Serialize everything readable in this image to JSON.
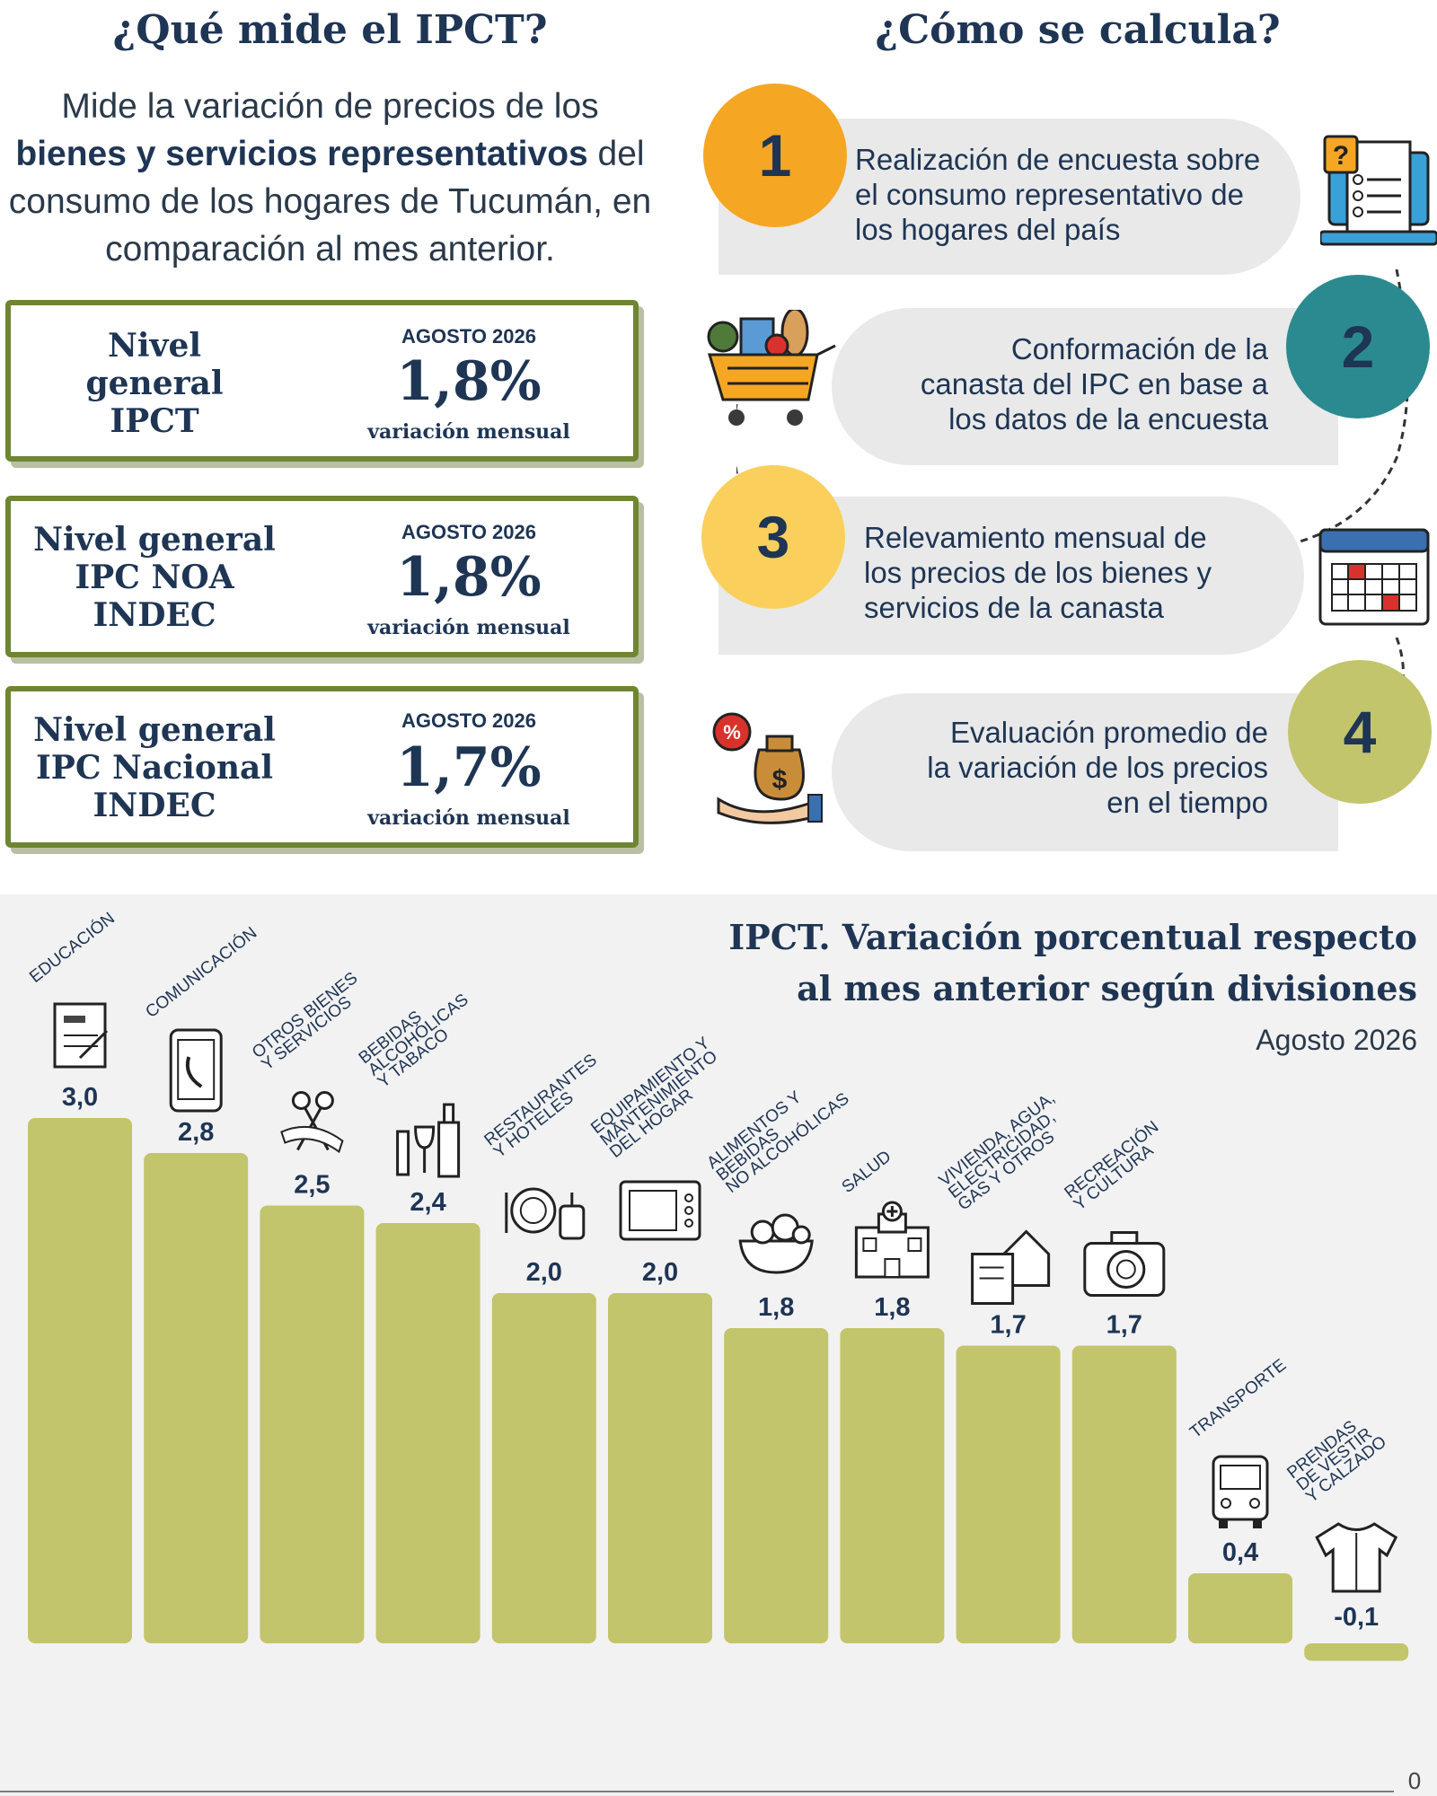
{
  "left": {
    "heading": "¿Qué mide el IPCT?",
    "intro_1": "Mide la variación de precios de los",
    "intro_bold": "bienes y servicios representativos",
    "intro_2": " del consumo de los hogares de Tucumán, en comparación al mes anterior."
  },
  "kpis": [
    {
      "name_lines": [
        "Nivel",
        "general",
        "IPCT"
      ],
      "month": "AGOSTO 2026",
      "value": "1,8%",
      "note": "variación mensual"
    },
    {
      "name_lines": [
        "Nivel general",
        "IPC NOA",
        "INDEC"
      ],
      "month": "AGOSTO 2026",
      "value": "1,8%",
      "note": "variación mensual"
    },
    {
      "name_lines": [
        "Nivel general",
        "IPC Nacional",
        "INDEC"
      ],
      "month": "AGOSTO 2026",
      "value": "1,7%",
      "note": "variación mensual"
    }
  ],
  "right": {
    "heading": "¿Cómo se calcula?",
    "steps": [
      {
        "number": "1",
        "color": "#f5a623",
        "lines": [
          "Realización de encuesta sobre",
          "el consumo representativo de",
          "los hogares del país"
        ],
        "icon": "survey-laptop-icon"
      },
      {
        "number": "2",
        "color": "#2b8a8f",
        "lines": [
          "Conformación de la",
          "canasta del IPC en base a",
          "los datos de la encuesta"
        ],
        "icon": "shopping-cart-icon"
      },
      {
        "number": "3",
        "color": "#fbcf5c",
        "lines": [
          "Relevamiento mensual de",
          "los precios de los bienes y",
          "servicios de la canasta"
        ],
        "icon": "calendar-icon"
      },
      {
        "number": "4",
        "color": "#c2c56b",
        "lines": [
          "Evaluación promedio de",
          "la variación de los precios",
          "en el tiempo"
        ],
        "icon": "money-bag-icon"
      }
    ]
  },
  "chart_data": {
    "type": "bar",
    "title_lines": [
      "IPCT. Variación porcentual respecto",
      "al mes anterior según divisiones"
    ],
    "subtitle": "Agosto 2026",
    "categories": [
      [
        "EDUCACIÓN"
      ],
      [
        "COMUNICACIÓN"
      ],
      [
        "OTROS BIENES",
        "Y SERVICIOS"
      ],
      [
        "BEBIDAS",
        "ALCOHÓLICAS",
        "Y TABACO"
      ],
      [
        "RESTAURANTES",
        "Y HOTELES"
      ],
      [
        "EQUIPAMIENTO Y",
        "MANTENIMIENTO",
        "DEL HOGAR"
      ],
      [
        "ALIMENTOS Y",
        "BEBIDAS",
        "NO ALCOHÓLICAS"
      ],
      [
        "SALUD"
      ],
      [
        "VIVIENDA, AGUA,",
        "ELECTRICIDAD,",
        "GAS Y OTROS"
      ],
      [
        "RECREACIÓN",
        "Y CULTURA"
      ],
      [
        "TRANSPORTE"
      ],
      [
        "PRENDAS",
        "DE VESTIR",
        "Y CALZADO"
      ]
    ],
    "icons": [
      "diploma-icon",
      "phone-icon",
      "scissors-icon",
      "wine-bottle-icon",
      "plate-cutlery-icon",
      "microwave-icon",
      "food-bowl-icon",
      "hospital-icon",
      "house-bill-icon",
      "camera-icon",
      "bus-icon",
      "shirt-icon"
    ],
    "values": [
      3.0,
      2.8,
      2.5,
      2.4,
      2.0,
      2.0,
      1.8,
      1.8,
      1.7,
      1.7,
      0.4,
      -0.1
    ],
    "value_labels": [
      "3,0",
      "2,8",
      "2,5",
      "2,4",
      "2,0",
      "2,0",
      "1,8",
      "1,8",
      "1,7",
      "1,7",
      "0,4",
      "-0,1"
    ],
    "bar_color": "#c2c56b",
    "baseline_label": "0"
  }
}
